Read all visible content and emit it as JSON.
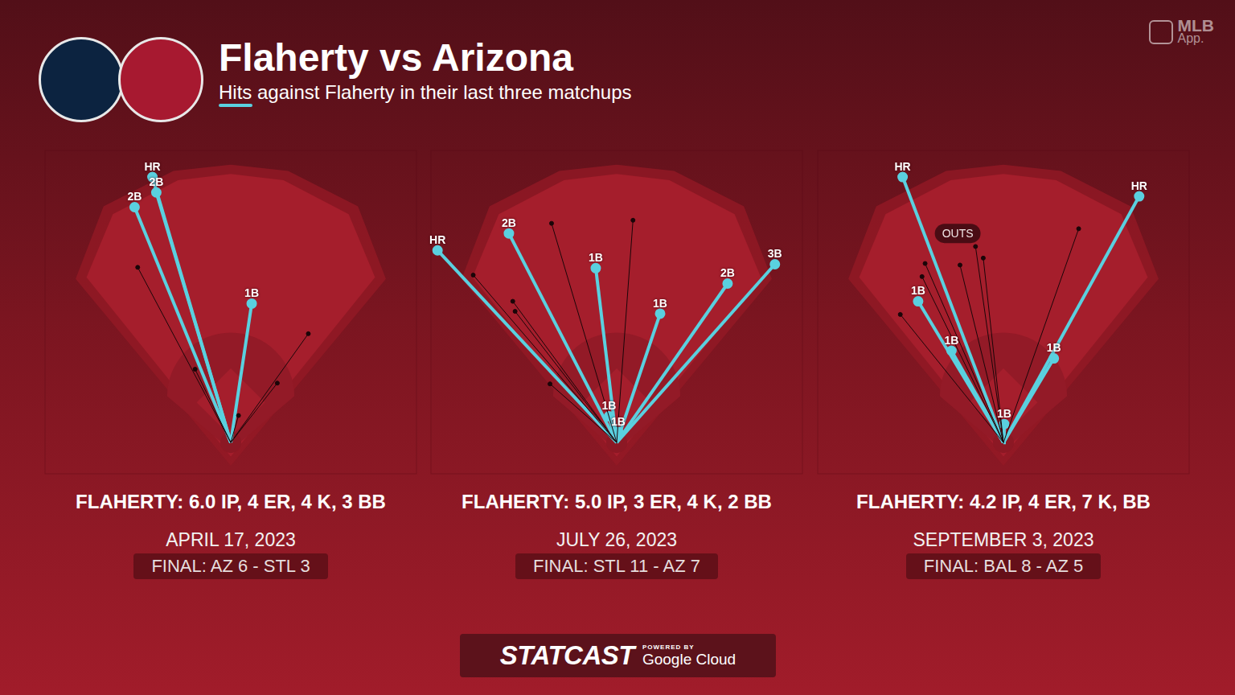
{
  "title": "Flaherty vs Arizona",
  "subtitle": "Hits against Flaherty in their last three matchups",
  "brand": [
    "MLB",
    "App."
  ],
  "footer": {
    "logo": "STATCAST",
    "powered_by": "POWERED BY",
    "partner": "Google Cloud"
  },
  "chart_data": [
    {
      "type": "scatter",
      "color": "#5ad0df",
      "tick_labels": false,
      "xlim": [
        -240,
        240
      ],
      "ylim": [
        -41,
        379
      ],
      "stat_line": "FLAHERTY: 6.0 IP, 4 ER, 4 K, 3 BB",
      "date": "APRIL 17, 2023",
      "final": "FINAL: AZ 6 - STL 3",
      "hits": [
        {
          "label": "HR",
          "x": -101,
          "y": 344
        },
        {
          "label": "2B",
          "x": -96,
          "y": 324
        },
        {
          "label": "2B",
          "x": -124,
          "y": 305
        },
        {
          "label": "1B",
          "x": 27,
          "y": 180
        }
      ],
      "outs": [
        {
          "x": -120,
          "y": 227
        },
        {
          "x": 100,
          "y": 141
        },
        {
          "x": -46,
          "y": 95
        },
        {
          "x": 60,
          "y": 77
        },
        {
          "x": 10,
          "y": 35
        }
      ],
      "annotations": []
    },
    {
      "type": "scatter",
      "color": "#5ad0df",
      "tick_labels": false,
      "xlim": [
        -240,
        240
      ],
      "ylim": [
        -41,
        379
      ],
      "stat_line": "FLAHERTY: 5.0 IP, 3 ER, 4 K, 2 BB",
      "date": "JULY 26, 2023",
      "final": "FINAL: STL 11 - AZ 7",
      "hits": [
        {
          "label": "HR",
          "x": -231,
          "y": 249
        },
        {
          "label": "2B",
          "x": -139,
          "y": 271
        },
        {
          "label": "1B",
          "x": -27,
          "y": 226
        },
        {
          "label": "1B",
          "x": 56,
          "y": 167
        },
        {
          "label": "2B",
          "x": 143,
          "y": 206
        },
        {
          "label": "3B",
          "x": 204,
          "y": 231
        },
        {
          "label": "1B",
          "x": -10,
          "y": 34
        },
        {
          "label": "1B",
          "x": 2,
          "y": 14
        }
      ],
      "outs": [
        {
          "x": -84,
          "y": 284
        },
        {
          "x": 21,
          "y": 288
        },
        {
          "x": -185,
          "y": 217
        },
        {
          "x": -134,
          "y": 183
        },
        {
          "x": -131,
          "y": 170
        },
        {
          "x": -86,
          "y": 76
        }
      ],
      "annotations": []
    },
    {
      "type": "scatter",
      "color": "#5ad0df",
      "tick_labels": false,
      "xlim": [
        -240,
        240
      ],
      "ylim": [
        -41,
        379
      ],
      "stat_line": "FLAHERTY: 4.2 IP, 4 ER, 7 K, BB",
      "date": "SEPTEMBER 3, 2023",
      "final": "FINAL: BAL 8 - AZ 5",
      "hits": [
        {
          "label": "HR",
          "x": -130,
          "y": 344
        },
        {
          "label": "HR",
          "x": 175,
          "y": 319
        },
        {
          "label": "1B",
          "x": -110,
          "y": 183
        },
        {
          "label": "1B",
          "x": -67,
          "y": 119
        },
        {
          "label": "1B",
          "x": 65,
          "y": 109
        },
        {
          "label": "1B",
          "x": 1,
          "y": 24
        }
      ],
      "outs": [
        {
          "x": 97,
          "y": 277
        },
        {
          "x": -36,
          "y": 254
        },
        {
          "x": -26,
          "y": 239
        },
        {
          "x": -56,
          "y": 230
        },
        {
          "x": -101,
          "y": 232
        },
        {
          "x": -105,
          "y": 215
        },
        {
          "x": -133,
          "y": 166
        }
      ],
      "annotations": [
        {
          "text": "OUTS",
          "x": -59,
          "y": 271
        }
      ]
    }
  ]
}
